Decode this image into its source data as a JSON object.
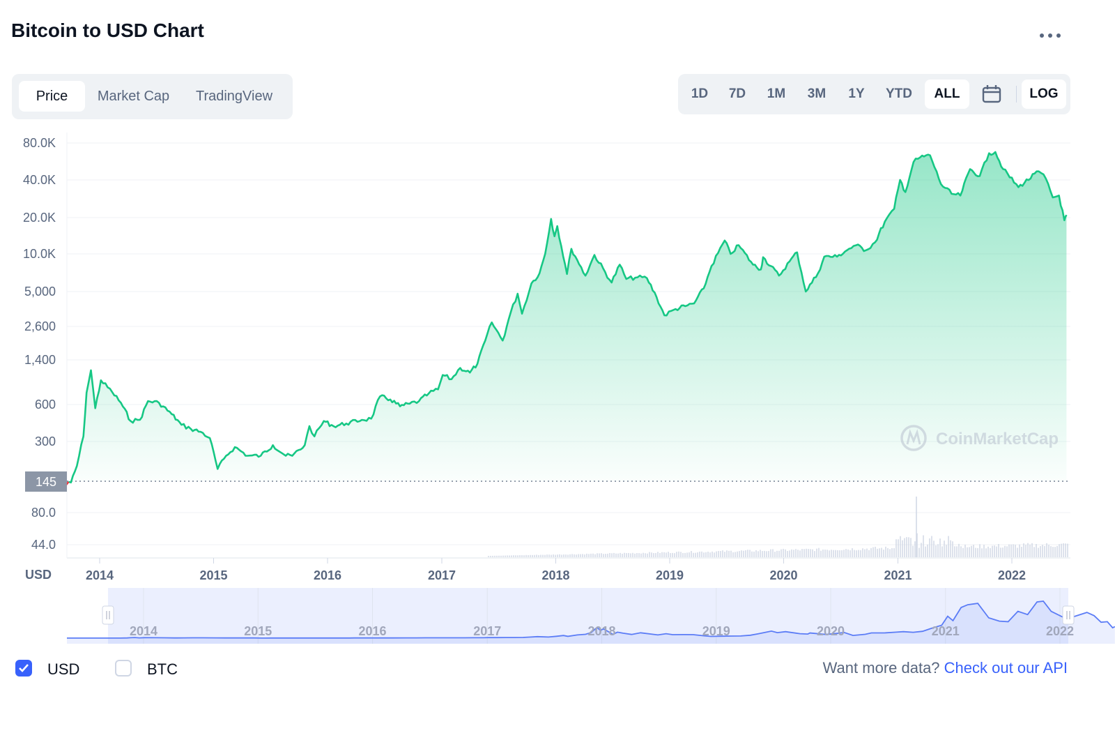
{
  "header": {
    "title": "Bitcoin to USD Chart",
    "more_icon": "ellipsis-icon"
  },
  "tabs": [
    {
      "label": "Price",
      "active": true
    },
    {
      "label": "Market Cap",
      "active": false
    },
    {
      "label": "TradingView",
      "active": false
    }
  ],
  "ranges": [
    {
      "label": "1D",
      "active": false
    },
    {
      "label": "7D",
      "active": false
    },
    {
      "label": "1M",
      "active": false
    },
    {
      "label": "3M",
      "active": false
    },
    {
      "label": "1Y",
      "active": false
    },
    {
      "label": "YTD",
      "active": false
    },
    {
      "label": "ALL",
      "active": true
    }
  ],
  "calendar_icon": "calendar-icon",
  "log_label": "LOG",
  "currency_label": "USD",
  "start_price_label": "145",
  "watermark": "CoinMarketCap",
  "legend": [
    {
      "label": "USD",
      "checked": true
    },
    {
      "label": "BTC",
      "checked": false
    }
  ],
  "footer": {
    "prompt": "Want more data?",
    "link": "Check out our API"
  },
  "colors": {
    "line": "#16c784",
    "accent": "#3861fb",
    "down": "#ea3943",
    "navigator": "#5b7cf6"
  },
  "chart_data": {
    "type": "area",
    "scale": "log",
    "ylabel": "USD",
    "y_ticks": [
      {
        "value": 80000,
        "label": "80.0K"
      },
      {
        "value": 40000,
        "label": "40.0K"
      },
      {
        "value": 20000,
        "label": "20.0K"
      },
      {
        "value": 10000,
        "label": "10.0K"
      },
      {
        "value": 5000,
        "label": "5,000"
      },
      {
        "value": 2600,
        "label": "2,600"
      },
      {
        "value": 1400,
        "label": "1,400"
      },
      {
        "value": 600,
        "label": "600"
      },
      {
        "value": 300,
        "label": "300"
      },
      {
        "value": 80,
        "label": "80.0"
      },
      {
        "value": 44,
        "label": "44.0"
      }
    ],
    "x_ticks": [
      "2014",
      "2015",
      "2016",
      "2017",
      "2018",
      "2019",
      "2020",
      "2021",
      "2022"
    ],
    "navigator_ticks": [
      "2014",
      "2015",
      "2016",
      "2017",
      "2018",
      "2019",
      "2020",
      "2021",
      "2022"
    ],
    "grid": true,
    "series": [
      {
        "points": [
          [
            "2013-09-01",
            130
          ],
          [
            "2013-10-01",
            140
          ],
          [
            "2013-10-20",
            190
          ],
          [
            "2013-11-10",
            330
          ],
          [
            "2013-11-20",
            750
          ],
          [
            "2013-12-04",
            1150
          ],
          [
            "2013-12-18",
            560
          ],
          [
            "2014-01-05",
            950
          ],
          [
            "2014-02-10",
            760
          ],
          [
            "2014-03-10",
            620
          ],
          [
            "2014-04-10",
            440
          ],
          [
            "2014-05-10",
            450
          ],
          [
            "2014-06-05",
            640
          ],
          [
            "2014-07-10",
            620
          ],
          [
            "2014-08-20",
            500
          ],
          [
            "2014-09-20",
            410
          ],
          [
            "2014-10-20",
            380
          ],
          [
            "2014-11-20",
            360
          ],
          [
            "2014-12-20",
            320
          ],
          [
            "2015-01-14",
            180
          ],
          [
            "2015-02-10",
            230
          ],
          [
            "2015-03-10",
            270
          ],
          [
            "2015-04-20",
            230
          ],
          [
            "2015-06-01",
            230
          ],
          [
            "2015-07-10",
            280
          ],
          [
            "2015-08-20",
            230
          ],
          [
            "2015-09-10",
            230
          ],
          [
            "2015-10-20",
            280
          ],
          [
            "2015-11-04",
            400
          ],
          [
            "2015-11-20",
            330
          ],
          [
            "2015-12-20",
            440
          ],
          [
            "2016-01-20",
            400
          ],
          [
            "2016-03-01",
            420
          ],
          [
            "2016-04-20",
            450
          ],
          [
            "2016-05-20",
            460
          ],
          [
            "2016-06-17",
            700
          ],
          [
            "2016-07-20",
            660
          ],
          [
            "2016-08-20",
            580
          ],
          [
            "2016-09-20",
            610
          ],
          [
            "2016-10-20",
            640
          ],
          [
            "2016-11-20",
            740
          ],
          [
            "2016-12-20",
            800
          ],
          [
            "2017-01-04",
            1050
          ],
          [
            "2017-02-01",
            970
          ],
          [
            "2017-03-01",
            1200
          ],
          [
            "2017-04-01",
            1100
          ],
          [
            "2017-04-25",
            1300
          ],
          [
            "2017-05-20",
            2000
          ],
          [
            "2017-06-10",
            2800
          ],
          [
            "2017-07-15",
            2000
          ],
          [
            "2017-08-10",
            3400
          ],
          [
            "2017-09-01",
            4800
          ],
          [
            "2017-09-15",
            3300
          ],
          [
            "2017-10-15",
            5800
          ],
          [
            "2017-11-10",
            7000
          ],
          [
            "2017-11-28",
            10000
          ],
          [
            "2017-12-17",
            19500
          ],
          [
            "2017-12-28",
            14000
          ],
          [
            "2018-01-06",
            17000
          ],
          [
            "2018-02-06",
            6900
          ],
          [
            "2018-02-20",
            11000
          ],
          [
            "2018-03-10",
            9000
          ],
          [
            "2018-04-06",
            6700
          ],
          [
            "2018-05-05",
            9800
          ],
          [
            "2018-06-29",
            5900
          ],
          [
            "2018-07-25",
            8200
          ],
          [
            "2018-08-15",
            6300
          ],
          [
            "2018-09-20",
            6500
          ],
          [
            "2018-10-20",
            6400
          ],
          [
            "2018-11-20",
            4500
          ],
          [
            "2018-12-15",
            3200
          ],
          [
            "2019-01-20",
            3600
          ],
          [
            "2019-02-20",
            3800
          ],
          [
            "2019-03-20",
            4000
          ],
          [
            "2019-04-20",
            5300
          ],
          [
            "2019-05-15",
            8000
          ],
          [
            "2019-06-26",
            12900
          ],
          [
            "2019-07-15",
            10000
          ],
          [
            "2019-08-10",
            11800
          ],
          [
            "2019-09-25",
            8200
          ],
          [
            "2019-10-20",
            7500
          ],
          [
            "2019-10-27",
            9400
          ],
          [
            "2019-12-17",
            6700
          ],
          [
            "2020-01-20",
            8700
          ],
          [
            "2020-02-13",
            10300
          ],
          [
            "2020-03-12",
            5000
          ],
          [
            "2020-04-20",
            7000
          ],
          [
            "2020-05-10",
            9500
          ],
          [
            "2020-06-20",
            9500
          ],
          [
            "2020-07-28",
            11000
          ],
          [
            "2020-08-20",
            11800
          ],
          [
            "2020-09-20",
            10700
          ],
          [
            "2020-10-20",
            12500
          ],
          [
            "2020-11-20",
            18500
          ],
          [
            "2020-12-20",
            23500
          ],
          [
            "2021-01-08",
            40000
          ],
          [
            "2021-01-25",
            32000
          ],
          [
            "2021-02-20",
            56000
          ],
          [
            "2021-03-13",
            61000
          ],
          [
            "2021-04-14",
            63500
          ],
          [
            "2021-05-19",
            37000
          ],
          [
            "2021-06-22",
            31000
          ],
          [
            "2021-07-20",
            30000
          ],
          [
            "2021-08-20",
            49000
          ],
          [
            "2021-09-20",
            43000
          ],
          [
            "2021-10-20",
            66000
          ],
          [
            "2021-11-09",
            67500
          ],
          [
            "2021-12-04",
            49000
          ],
          [
            "2022-01-22",
            35000
          ],
          [
            "2022-03-28",
            47000
          ],
          [
            "2022-04-20",
            41000
          ],
          [
            "2022-05-12",
            29000
          ],
          [
            "2022-06-01",
            30000
          ],
          [
            "2022-06-18",
            19000
          ],
          [
            "2022-06-25",
            21000
          ]
        ]
      }
    ]
  }
}
